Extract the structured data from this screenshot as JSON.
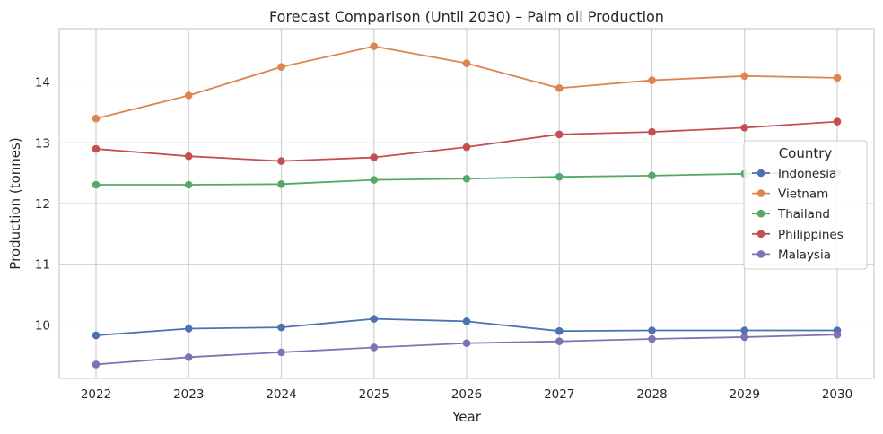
{
  "chart_data": {
    "type": "line",
    "title": "Forecast Comparison (Until 2030) – Palm oil Production",
    "xlabel": "Year",
    "ylabel": "Production (tonnes)",
    "x": [
      "2022",
      "2023",
      "2024",
      "2025",
      "2026",
      "2027",
      "2028",
      "2029",
      "2030"
    ],
    "yticks": [
      "10",
      "11",
      "12",
      "13",
      "14"
    ],
    "ylim": [
      9.12,
      14.88
    ],
    "grid": true,
    "legend": {
      "title": "Country",
      "placement": "center-right"
    },
    "series": [
      {
        "name": "Indonesia",
        "color": "#4c72b0",
        "values": [
          9.83,
          9.94,
          9.96,
          10.1,
          10.06,
          9.9,
          9.91,
          9.91,
          9.91
        ]
      },
      {
        "name": "Vietnam",
        "color": "#dd8452",
        "values": [
          13.4,
          13.78,
          14.25,
          14.59,
          14.31,
          13.9,
          14.03,
          14.1,
          14.07
        ]
      },
      {
        "name": "Thailand",
        "color": "#55a868",
        "values": [
          12.31,
          12.31,
          12.32,
          12.39,
          12.41,
          12.44,
          12.46,
          12.49,
          12.52
        ]
      },
      {
        "name": "Philippines",
        "color": "#c44e52",
        "values": [
          12.9,
          12.78,
          12.7,
          12.76,
          12.93,
          13.14,
          13.18,
          13.25,
          13.35
        ]
      },
      {
        "name": "Malaysia",
        "color": "#8172b3",
        "values": [
          9.35,
          9.47,
          9.55,
          9.63,
          9.7,
          9.73,
          9.77,
          9.8,
          9.84
        ]
      }
    ]
  }
}
